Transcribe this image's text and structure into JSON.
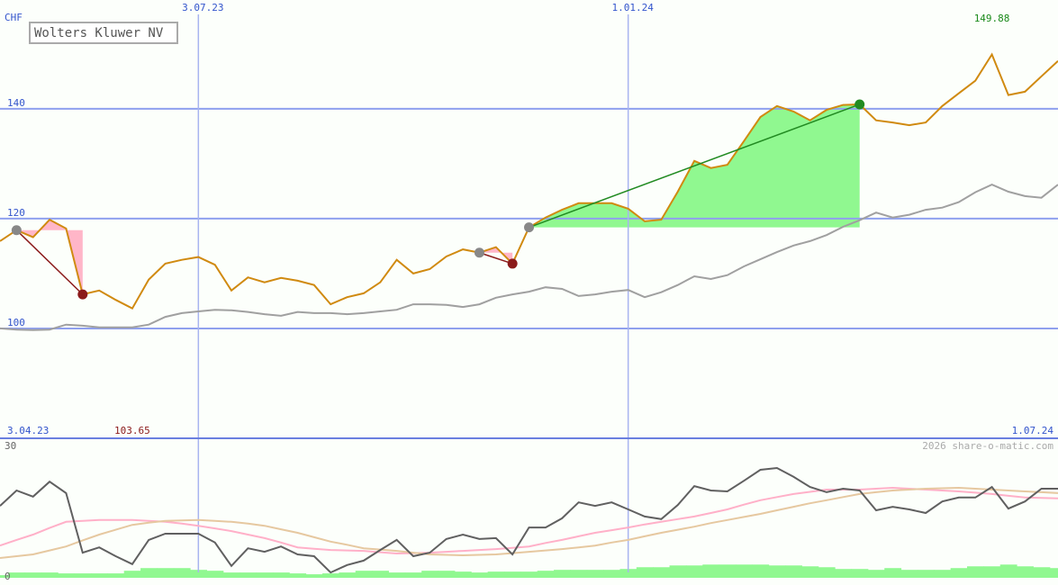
{
  "chart_data": [
    {
      "type": "line",
      "unit": "CHF",
      "credit": "2026 share-o-matic.com",
      "xlim": [
        0,
        64
      ],
      "xticks": [
        {
          "value": 0,
          "label": "3.04.23"
        },
        {
          "value": 12,
          "label": "3.07.23"
        },
        {
          "value": 38,
          "label": "1.01.24"
        },
        {
          "value": 64,
          "label": "1.07.24"
        }
      ],
      "ylim": [
        80,
        159.8
      ],
      "yticks": [
        100,
        120,
        140
      ],
      "grid": true,
      "high": 149.88,
      "high_color": "#1a8a1a",
      "low": 103.65,
      "low_color": "#8b1a1a",
      "series": [
        {
          "name": "Wolters Kluwer NV",
          "color": "#d08a10",
          "values": [
            115.9,
            117.9,
            116.6,
            119.8,
            118.2,
            106.2,
            106.9,
            105.2,
            103.65,
            108.9,
            111.8,
            112.5,
            113,
            111.6,
            106.9,
            109.3,
            108.4,
            109.2,
            108.7,
            107.9,
            104.4,
            105.7,
            106.4,
            108.4,
            112.5,
            110,
            110.8,
            113.1,
            114.4,
            113.8,
            114.8,
            111.8,
            118.4,
            120.2,
            121.6,
            122.8,
            122.8,
            122.8,
            121.8,
            119.5,
            119.8,
            124.9,
            130.5,
            129.2,
            129.8,
            134.1,
            138.5,
            140.5,
            139.5,
            137.9,
            139.8,
            140.7,
            140.8,
            137.9,
            137.5,
            137,
            137.5,
            140.5,
            142.8,
            145.1,
            149.88,
            142.5,
            143.1,
            145.9,
            148.7
          ]
        },
        {
          "color": "#a0a0a0",
          "values": [
            100,
            99.8,
            99.7,
            99.8,
            100.7,
            100.5,
            100.2,
            100.2,
            100.2,
            100.7,
            102.1,
            102.8,
            103.1,
            103.4,
            103.3,
            103,
            102.6,
            102.3,
            103,
            102.8,
            102.8,
            102.6,
            102.8,
            103.1,
            103.4,
            104.4,
            104.4,
            104.3,
            103.9,
            104.4,
            105.6,
            106.2,
            106.7,
            107.5,
            107.2,
            105.9,
            106.2,
            106.7,
            107,
            105.7,
            106.6,
            107.9,
            109.5,
            109,
            109.7,
            111.3,
            112.6,
            113.9,
            115.1,
            115.9,
            117,
            118.5,
            119.7,
            121.1,
            120.2,
            120.7,
            121.6,
            122,
            123,
            124.8,
            126.2,
            124.9,
            124.1,
            123.8,
            126.2
          ]
        }
      ],
      "signals": [
        {
          "from": 1,
          "to": 5,
          "color": "#8b1a1a",
          "fill": "#ffb6c8"
        },
        {
          "from": 29,
          "to": 31,
          "color": "#8b1a1a",
          "fill": "#ffb6c8"
        },
        {
          "from": 32,
          "to": 52,
          "color": "#228b22",
          "fill": "#90f890"
        }
      ]
    },
    {
      "type": "line",
      "xlim": [
        0,
        64
      ],
      "ylim": [
        0,
        30
      ],
      "yticks": [
        0,
        30
      ],
      "series": [
        {
          "type": "bar",
          "color": "#90f890",
          "values": [
            0.6,
            1.2,
            1.2,
            1.2,
            1.0,
            1.0,
            1.0,
            1.0,
            1.6,
            2.2,
            2.2,
            2.2,
            1.8,
            1.6,
            1.2,
            1.2,
            1.2,
            1.2,
            1.0,
            0.8,
            1.0,
            1.2,
            1.6,
            1.6,
            1.2,
            1.2,
            1.6,
            1.6,
            1.4,
            1.2,
            1.4,
            1.4,
            1.4,
            1.6,
            1.8,
            1.8,
            1.8,
            1.8,
            2.0,
            2.4,
            2.4,
            2.8,
            2.8,
            3.0,
            3.0,
            3.0,
            3.0,
            2.8,
            2.8,
            2.6,
            2.4,
            2.0,
            2.0,
            1.8,
            2.2,
            1.8,
            1.8,
            1.8,
            2.2,
            2.6,
            2.6,
            3.0,
            2.6,
            2.4,
            2.2
          ]
        },
        {
          "color": "#ffb0c8",
          "values": [
            7.3,
            8.6,
            9.8,
            11.3,
            12.7,
            12.9,
            13.1,
            13.1,
            13.1,
            12.9,
            12.7,
            12.3,
            11.8,
            11.2,
            10.6,
            9.8,
            9,
            8,
            6.9,
            6.6,
            6.3,
            6.2,
            6.1,
            5.8,
            5.5,
            5.6,
            5.7,
            5.9,
            6.1,
            6.3,
            6.5,
            6.8,
            7.1,
            7.9,
            8.6,
            9.4,
            10.2,
            10.8,
            11.4,
            12.1,
            12.7,
            13.3,
            13.9,
            14.7,
            15.5,
            16.6,
            17.6,
            18.3,
            19,
            19.5,
            20,
            20,
            20,
            20.2,
            20.4,
            20.2,
            20,
            19.8,
            19.6,
            19.3,
            19,
            18.6,
            18.2,
            18.1,
            18
          ]
        },
        {
          "color": "#e6c8a0",
          "values": [
            4.5,
            4.9,
            5.3,
            6.2,
            7.1,
            8.5,
            9.8,
            10.9,
            12,
            12.5,
            12.9,
            13,
            13.1,
            12.9,
            12.7,
            12.3,
            11.8,
            11,
            10.2,
            9.2,
            8.2,
            7.5,
            6.7,
            6.4,
            6.1,
            5.7,
            5.3,
            5.2,
            5.1,
            5.2,
            5.3,
            5.6,
            5.9,
            6.2,
            6.5,
            6.9,
            7.3,
            8,
            8.6,
            9.4,
            10.2,
            10.9,
            11.6,
            12.4,
            13.1,
            13.8,
            14.5,
            15.3,
            16.1,
            16.9,
            17.6,
            18.3,
            19,
            19.4,
            19.8,
            20,
            20.2,
            20.3,
            20.4,
            20.2,
            20,
            19.8,
            19.6,
            19.4,
            19.2
          ]
        },
        {
          "color": "#606060",
          "values": [
            16.3,
            19.8,
            18.4,
            21.8,
            19.2,
            5.7,
            6.9,
            4.9,
            3.1,
            8.6,
            10,
            10,
            10,
            8,
            2.7,
            6.7,
            5.9,
            7.1,
            5.3,
            4.9,
            1.2,
            2.9,
            3.9,
            6.3,
            8.6,
            4.9,
            5.7,
            8.8,
            9.8,
            8.8,
            9,
            5.3,
            11.4,
            11.4,
            13.5,
            17.1,
            16.3,
            17.1,
            15.5,
            13.9,
            13.3,
            16.5,
            20.8,
            19.8,
            19.6,
            22,
            24.5,
            24.9,
            22.9,
            20.6,
            19.4,
            20.2,
            19.8,
            15.3,
            16.1,
            15.5,
            14.7,
            17.3,
            18.2,
            18.2,
            20.6,
            15.7,
            17.3,
            20.2,
            20.2
          ]
        }
      ]
    }
  ]
}
